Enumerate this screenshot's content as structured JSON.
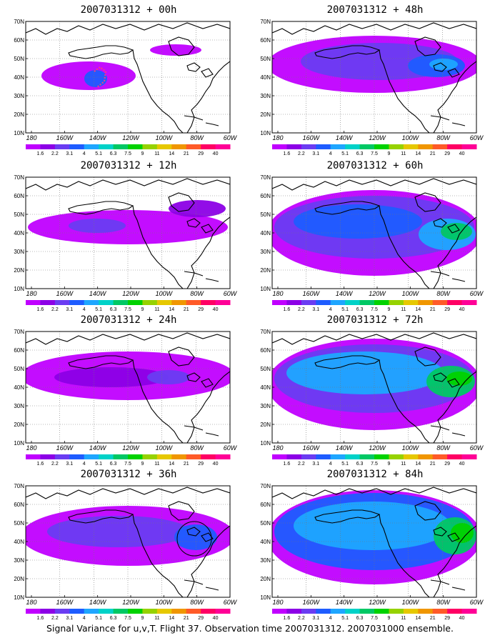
{
  "figure": {
    "caption": "Signal Variance for u,v,T. Flight 37. Observation time 2007031312. 2007031000 ensemble."
  },
  "axes": {
    "y_ticks": [
      "70N",
      "60N",
      "50N",
      "40N",
      "30N",
      "20N",
      "10N"
    ],
    "x_ticks": [
      "180",
      "160W",
      "140W",
      "120W",
      "100W",
      "80W",
      "60W"
    ]
  },
  "colorbar": {
    "labels": [
      "1.6",
      "2.2",
      "3.1",
      "4",
      "5.1",
      "6.3",
      "7.5",
      "9",
      "11",
      "14",
      "21",
      "29",
      "40"
    ],
    "colors": [
      "#c000ff",
      "#8c00e6",
      "#6a3cf2",
      "#1e5cff",
      "#1ea6ff",
      "#00d2c8",
      "#00c864",
      "#00d200",
      "#96d200",
      "#e6c800",
      "#f09600",
      "#ff5a28",
      "#ff0064",
      "#ff0096"
    ]
  },
  "panels": [
    {
      "title": "2007031312 + 00h"
    },
    {
      "title": "2007031312 + 48h"
    },
    {
      "title": "2007031312 + 12h"
    },
    {
      "title": "2007031312 + 60h"
    },
    {
      "title": "2007031312 + 24h"
    },
    {
      "title": "2007031312 + 72h"
    },
    {
      "title": "2007031312 + 36h"
    },
    {
      "title": "2007031312 + 84h"
    }
  ]
}
